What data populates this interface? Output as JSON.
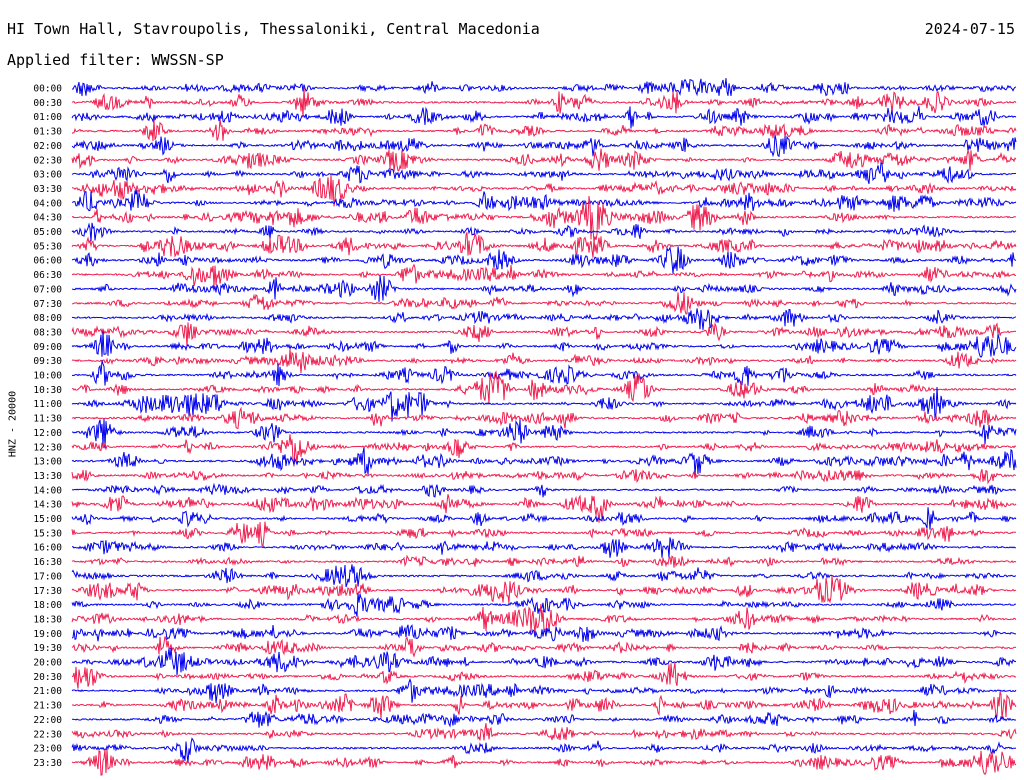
{
  "header": {
    "station": "HI Town Hall, Stavroupolis, Thessaloniki, Central Macedonia",
    "date": "2024-07-15",
    "filter": "Applied filter: WWSSN-SP"
  },
  "chart_data": {
    "type": "line",
    "ylabel": "HNZ - 20000",
    "colors": [
      "#0000ee",
      "#ee1e4f"
    ],
    "time_labels": [
      "00:00",
      "00:30",
      "01:00",
      "01:30",
      "02:00",
      "02:30",
      "03:00",
      "03:30",
      "04:00",
      "04:30",
      "05:00",
      "05:30",
      "06:00",
      "06:30",
      "07:00",
      "07:30",
      "08:00",
      "08:30",
      "09:00",
      "09:30",
      "10:00",
      "10:30",
      "11:00",
      "11:30",
      "12:00",
      "12:30",
      "13:00",
      "13:30",
      "14:00",
      "14:30",
      "15:00",
      "15:30",
      "16:00",
      "16:30",
      "17:00",
      "17:30",
      "18:00",
      "18:30",
      "19:00",
      "19:30",
      "20:00",
      "20:30",
      "21:00",
      "21:30",
      "22:00",
      "22:30",
      "23:00",
      "23:30"
    ],
    "grid": false
  }
}
